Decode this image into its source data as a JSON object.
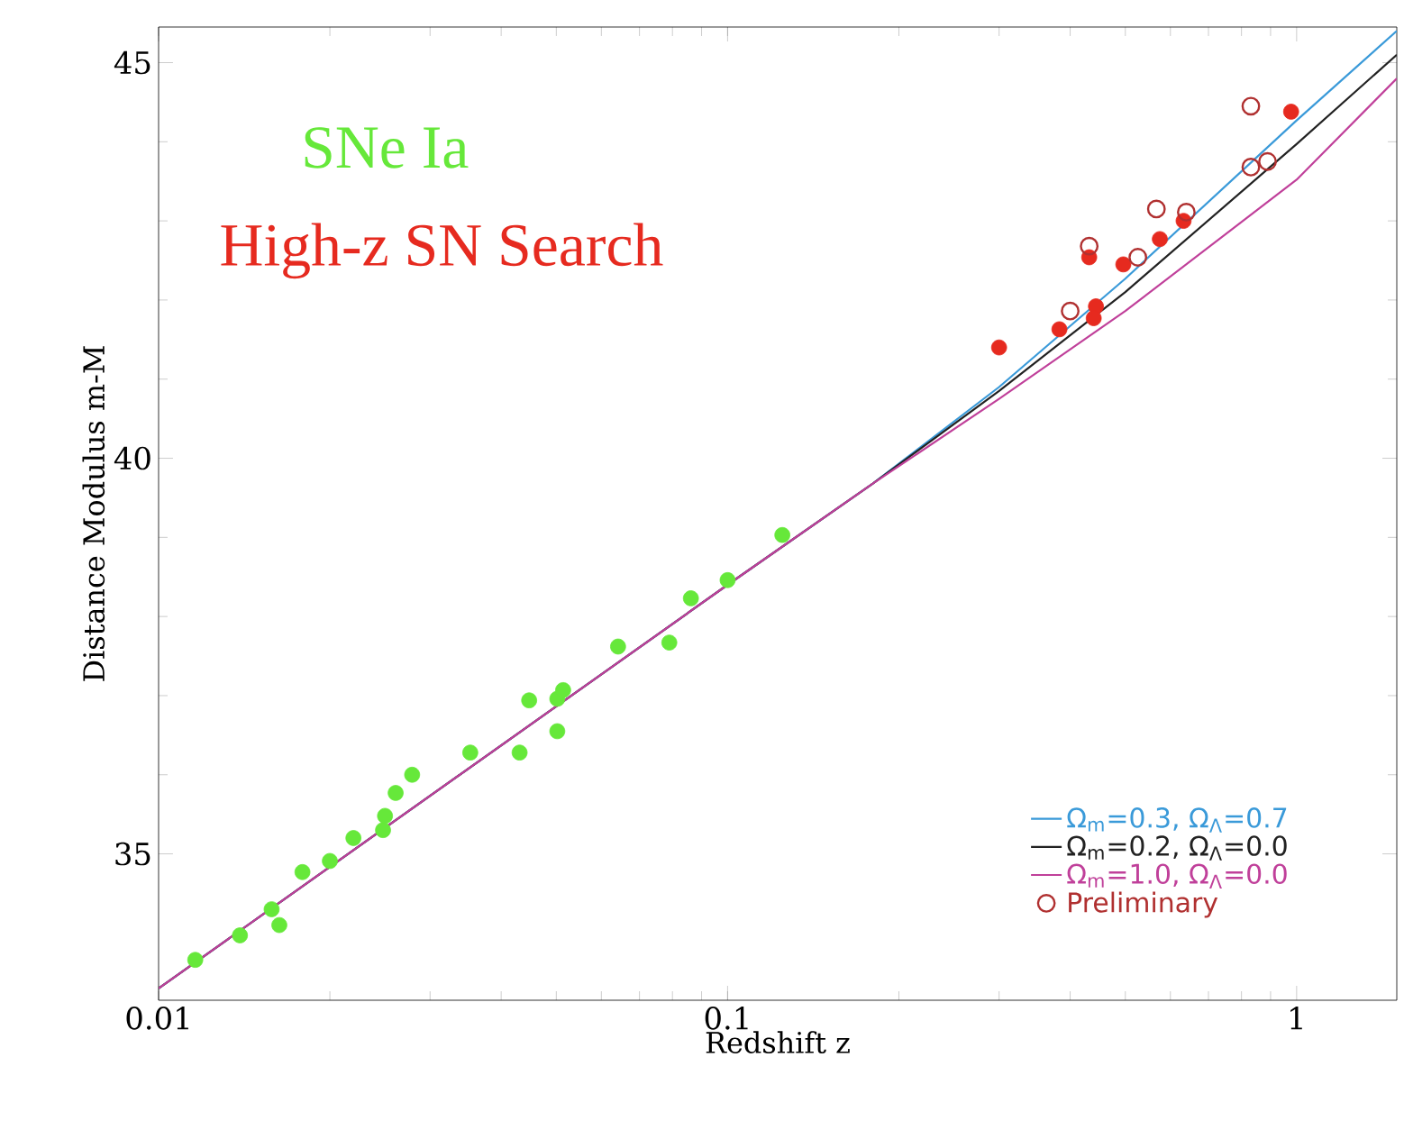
{
  "chart_data": {
    "type": "scatter",
    "xlabel": "Redshift z",
    "ylabel": "Distance Modulus m-M",
    "log": "x",
    "xlim": [
      0.01,
      1.5
    ],
    "ylim": [
      33.15,
      45.45
    ],
    "xticks": [
      0.01,
      0.1,
      1
    ],
    "yticks": [
      35,
      40,
      45
    ],
    "grid": false,
    "legend": "bottom right",
    "series": [
      {
        "name": "Ω$_{m}$=0.3,  Ω$_{Λ}$=0.7",
        "type": "line",
        "marker": "none",
        "color": "#3a9ad9",
        "x": [
          0.01,
          0.1,
          0.18,
          0.3,
          0.5,
          1,
          1.5
        ],
        "values": [
          33.3,
          38.4,
          39.68,
          40.9,
          42.27,
          44.27,
          45.4
        ]
      },
      {
        "name": "Ω$_{m}$=0.2,  Ω$_{Λ}$=0.0",
        "type": "line",
        "marker": "none",
        "color": "#222222",
        "x": [
          0.01,
          0.1,
          0.18,
          0.3,
          0.5,
          1,
          1.5
        ],
        "values": [
          33.3,
          38.4,
          39.68,
          40.85,
          42.1,
          43.97,
          45.1
        ]
      },
      {
        "name": "Ω$_{m}$=1.0,  Ω$_{Λ}$=0.0",
        "type": "line",
        "marker": "none",
        "color": "#c0409a",
        "x": [
          0.01,
          0.1,
          0.18,
          0.3,
          0.5,
          1,
          1.5
        ],
        "values": [
          33.3,
          38.4,
          39.68,
          40.75,
          41.86,
          43.52,
          44.8
        ]
      },
      {
        "name": "SNe Ia",
        "marker": "circle",
        "color": "#66e83a",
        "x": [
          0.0116,
          0.0139,
          0.0158,
          0.0163,
          0.0179,
          0.02,
          0.022,
          0.0246,
          0.0248,
          0.025,
          0.0261,
          0.0279,
          0.0353,
          0.0431,
          0.0448,
          0.0502,
          0.0514,
          0.0502,
          0.0642,
          0.079,
          0.0862,
          0.1,
          0.1248
        ],
        "values": [
          33.66,
          33.97,
          34.3,
          34.1,
          34.77,
          34.91,
          35.2,
          null,
          35.3,
          35.48,
          35.77,
          36.0,
          36.28,
          36.28,
          36.94,
          36.96,
          37.07,
          36.55,
          37.62,
          37.67,
          38.23,
          38.46,
          39.03
        ]
      },
      {
        "name": "High-z SN Search",
        "marker": "circle",
        "color": "#e62a1f",
        "x": [
          0.3,
          0.383,
          0.432,
          0.444,
          0.44,
          0.496,
          0.575,
          0.633,
          0.978
        ],
        "values": [
          41.4,
          41.63,
          42.54,
          41.92,
          41.77,
          42.45,
          42.77,
          43.0,
          44.38
        ]
      },
      {
        "name": "Preliminary",
        "marker": "circle",
        "color": "#b03030",
        "x": [
          0.4,
          0.432,
          0.526,
          0.567,
          0.64,
          0.831,
          0.831,
          0.889
        ],
        "values": [
          41.86,
          42.68,
          42.54,
          43.15,
          43.11,
          44.45,
          43.68,
          43.75
        ]
      }
    ]
  }
}
